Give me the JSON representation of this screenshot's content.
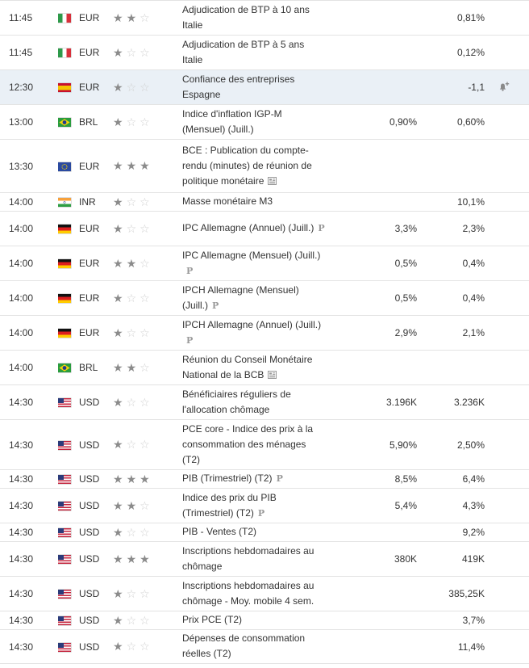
{
  "icon_names": {
    "star_on": "star-filled-icon",
    "star_off": "star-empty-icon",
    "preliminary": "preliminary-p-icon",
    "document": "document-icon",
    "alert": "bell-add-icon"
  },
  "colors": {
    "highlight_row": "#eaf0f6",
    "star_on": "#8b8b8b",
    "star_off": "#d0d0d0",
    "text": "#333333"
  },
  "events": [
    {
      "time": "11:45",
      "country": "italy-flag",
      "currency": "EUR",
      "stars": 2,
      "event": "Adjudication de BTP à 10 ans Italie",
      "forecast": "",
      "previous": "0,81%",
      "icon": ""
    },
    {
      "time": "11:45",
      "country": "italy-flag",
      "currency": "EUR",
      "stars": 1,
      "event": "Adjudication de BTP à 5 ans Italie",
      "forecast": "",
      "previous": "0,12%",
      "icon": ""
    },
    {
      "time": "12:30",
      "country": "spain-flag",
      "currency": "EUR",
      "stars": 1,
      "event": "Confiance des entreprises Espagne",
      "forecast": "",
      "previous": "-1,1",
      "icon": "",
      "highlight": true,
      "alert": true
    },
    {
      "time": "13:00",
      "country": "brazil-flag",
      "currency": "BRL",
      "stars": 1,
      "event": "Indice d'inflation IGP-M (Mensuel) (Juill.)",
      "forecast": "0,90%",
      "previous": "0,60%",
      "icon": ""
    },
    {
      "time": "13:30",
      "country": "eu-flag",
      "currency": "EUR",
      "stars": 3,
      "event": "BCE : Publication du compte-rendu (minutes) de réunion de politique monétaire",
      "forecast": "",
      "previous": "",
      "icon": "document"
    },
    {
      "time": "14:00",
      "country": "india-flag",
      "currency": "INR",
      "stars": 1,
      "event": "Masse monétaire M3",
      "forecast": "",
      "previous": "10,1%",
      "icon": ""
    },
    {
      "time": "14:00",
      "country": "germany-flag",
      "currency": "EUR",
      "stars": 1,
      "event": "IPC Allemagne (Annuel) (Juill.)",
      "forecast": "3,3%",
      "previous": "2,3%",
      "icon": "preliminary"
    },
    {
      "time": "14:00",
      "country": "germany-flag",
      "currency": "EUR",
      "stars": 2,
      "event": "IPC Allemagne (Mensuel) (Juill.)",
      "forecast": "0,5%",
      "previous": "0,4%",
      "icon": "preliminary"
    },
    {
      "time": "14:00",
      "country": "germany-flag",
      "currency": "EUR",
      "stars": 1,
      "event": "IPCH Allemagne (Mensuel) (Juill.)",
      "forecast": "0,5%",
      "previous": "0,4%",
      "icon": "preliminary"
    },
    {
      "time": "14:00",
      "country": "germany-flag",
      "currency": "EUR",
      "stars": 1,
      "event": "IPCH Allemagne (Annuel) (Juill.)",
      "forecast": "2,9%",
      "previous": "2,1%",
      "icon": "preliminary"
    },
    {
      "time": "14:00",
      "country": "brazil-flag",
      "currency": "BRL",
      "stars": 2,
      "event": "Réunion du Conseil Monétaire National de la BCB",
      "forecast": "",
      "previous": "",
      "icon": "document"
    },
    {
      "time": "14:30",
      "country": "us-flag",
      "currency": "USD",
      "stars": 1,
      "event": "Bénéficiaires réguliers de l'allocation chômage",
      "forecast": "3.196K",
      "previous": "3.236K",
      "icon": ""
    },
    {
      "time": "14:30",
      "country": "us-flag",
      "currency": "USD",
      "stars": 1,
      "event": "PCE core - Indice des prix à la consommation des ménages (T2)",
      "forecast": "5,90%",
      "previous": "2,50%",
      "icon": ""
    },
    {
      "time": "14:30",
      "country": "us-flag",
      "currency": "USD",
      "stars": 3,
      "event": "PIB (Trimestriel) (T2)",
      "forecast": "8,5%",
      "previous": "6,4%",
      "icon": "preliminary"
    },
    {
      "time": "14:30",
      "country": "us-flag",
      "currency": "USD",
      "stars": 2,
      "event": "Indice des prix du PIB (Trimestriel) (T2)",
      "forecast": "5,4%",
      "previous": "4,3%",
      "icon": "preliminary"
    },
    {
      "time": "14:30",
      "country": "us-flag",
      "currency": "USD",
      "stars": 1,
      "event": "PIB - Ventes (T2)",
      "forecast": "",
      "previous": "9,2%",
      "icon": ""
    },
    {
      "time": "14:30",
      "country": "us-flag",
      "currency": "USD",
      "stars": 3,
      "event": "Inscriptions hebdomadaires au chômage",
      "forecast": "380K",
      "previous": "419K",
      "icon": ""
    },
    {
      "time": "14:30",
      "country": "us-flag",
      "currency": "USD",
      "stars": 1,
      "event": "Inscriptions hebdomadaires au chômage - Moy. mobile 4 sem.",
      "forecast": "",
      "previous": "385,25K",
      "icon": ""
    },
    {
      "time": "14:30",
      "country": "us-flag",
      "currency": "USD",
      "stars": 1,
      "event": "Prix PCE (T2)",
      "forecast": "",
      "previous": "3,7%",
      "icon": ""
    },
    {
      "time": "14:30",
      "country": "us-flag",
      "currency": "USD",
      "stars": 1,
      "event": "Dépenses de consommation réelles (T2)",
      "forecast": "",
      "previous": "11,4%",
      "icon": ""
    }
  ]
}
